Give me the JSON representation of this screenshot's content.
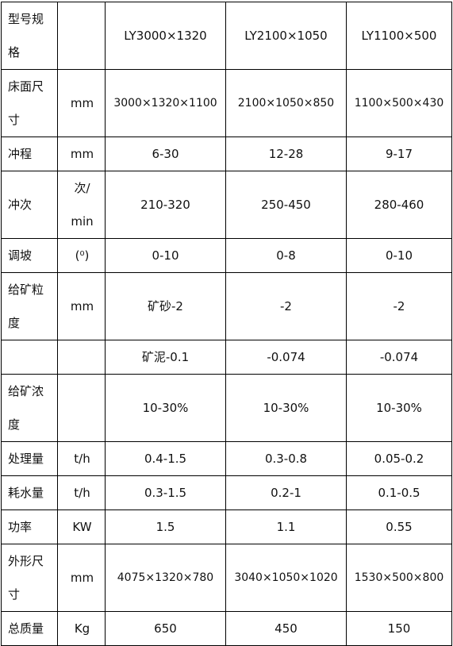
{
  "table": {
    "rows": [
      [
        "型号规格",
        "",
        "LY3000×1320",
        "LY2100×1050",
        "LY1100×500"
      ],
      [
        "床面尺寸",
        "mm",
        "3000×1320×1100",
        "2100×1050×850",
        "1100×500×430"
      ],
      [
        "冲程",
        "mm",
        "6-30",
        "12-28",
        "9-17"
      ],
      [
        "冲次",
        "次/min",
        "210-320",
        "250-450",
        "280-460"
      ],
      [
        "调坡",
        "(⁰)",
        "0-10",
        "0-8",
        "0-10"
      ],
      [
        "给矿粒度",
        "mm",
        "矿砂-2",
        "-2",
        "-2"
      ],
      [
        "",
        "",
        "矿泥-0.1",
        "-0.074",
        "-0.074"
      ],
      [
        "给矿浓度",
        "",
        "10-30%",
        "10-30%",
        "10-30%"
      ],
      [
        "处理量",
        "t/h",
        "0.4-1.5",
        "0.3-0.8",
        "0.05-0.2"
      ],
      [
        "耗水量",
        "t/h",
        "0.3-1.5",
        "0.2-1",
        "0.1-0.5"
      ],
      [
        "功率",
        "KW",
        "1.5",
        "1.1",
        "0.55"
      ],
      [
        "外形尺寸",
        "mm",
        "4075×1320×780",
        "3040×1050×1020",
        "1530×500×800"
      ],
      [
        "总质量",
        "Kg",
        "650",
        "450",
        "150"
      ]
    ]
  }
}
